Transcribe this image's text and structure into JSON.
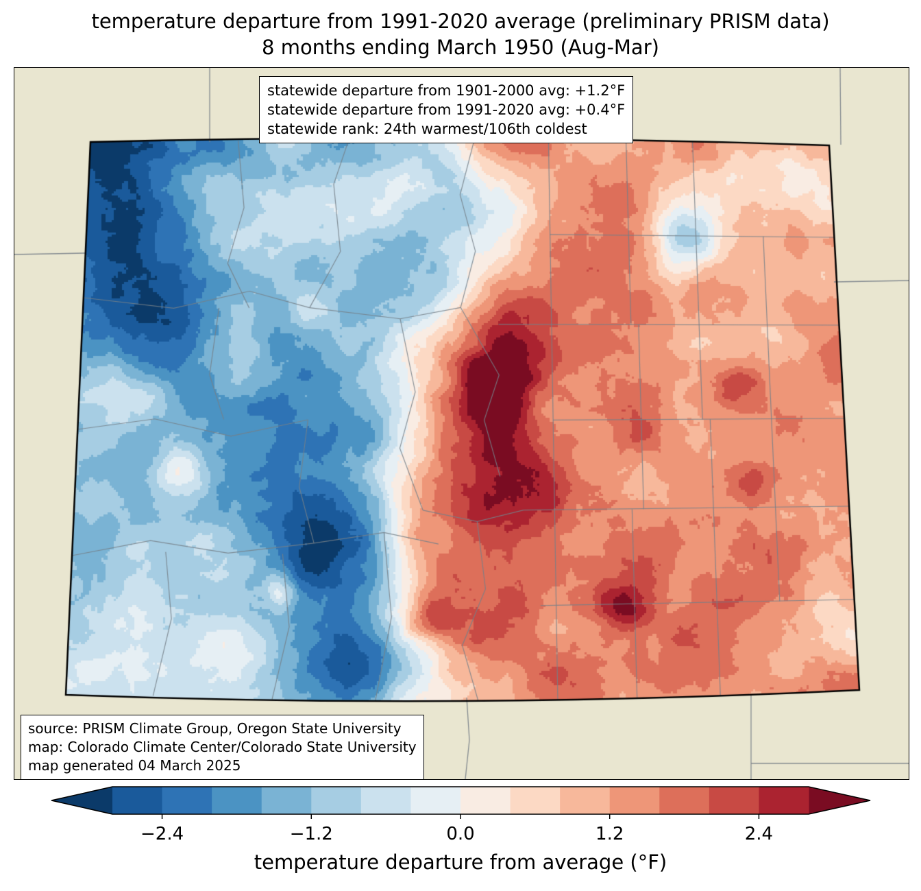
{
  "title": {
    "line1": "temperature departure from 1991-2020 average (preliminary PRISM data)",
    "line2": "8 months ending March 1950 (Aug-Mar)"
  },
  "stats_box": {
    "line1": "statewide departure from 1901-2000 avg: +1.2°F",
    "line2": "statewide departure from 1991-2020 avg: +0.4°F",
    "line3": "statewide rank: 24th warmest/106th coldest"
  },
  "source_box": {
    "line1": "source: PRISM Climate Group, Oregon State University",
    "line2": "map: Colorado Climate Center/Colorado State University",
    "line3": "map generated 04 March 2025"
  },
  "colorbar": {
    "label": "temperature departure from average (°F)",
    "ticks": [
      "−2.4",
      "−1.2",
      "0.0",
      "1.2",
      "2.4"
    ],
    "tick_values": [
      -2.4,
      -1.2,
      0.0,
      1.2,
      2.4
    ],
    "range": [
      -2.8,
      2.8
    ],
    "under_color": "#0b3a69",
    "over_color": "#7a0c22",
    "segment_colors": [
      "#1a5a9b",
      "#2e73b5",
      "#4b93c3",
      "#7ab3d4",
      "#a6cde3",
      "#cbe1ee",
      "#e6eff4",
      "#f9ece3",
      "#fcd9c4",
      "#f7b89b",
      "#ee9678",
      "#dd6f5a",
      "#c84a44",
      "#ab2330"
    ]
  },
  "map": {
    "background_color": "#e9e6d0",
    "state_border_color": "#000000",
    "county_line_color": "rgba(118,128,136,0.85)"
  },
  "chart_data": {
    "type": "heatmap",
    "title": "temperature departure from 1991-2020 average (preliminary PRISM data) — 8 months ending March 1950 (Aug-Mar)",
    "region": "Colorado",
    "colorbar_label": "temperature departure from average (°F)",
    "colorbar_ticks": [
      -2.4,
      -1.2,
      0.0,
      1.2,
      2.4
    ],
    "colorbar_range": [
      -2.8,
      2.8
    ],
    "statewide_departure_from_1901_2000_avg_F": 1.2,
    "statewide_departure_from_1991_2020_avg_F": 0.4,
    "statewide_rank": "24th warmest/106th coldest",
    "pattern_summary": "cold departures (blue) in northwest and west-central mountains, strongest warm departures (dark red) in central mountains, moderate warm departures across eastern plains, small cool spot in northeast"
  }
}
